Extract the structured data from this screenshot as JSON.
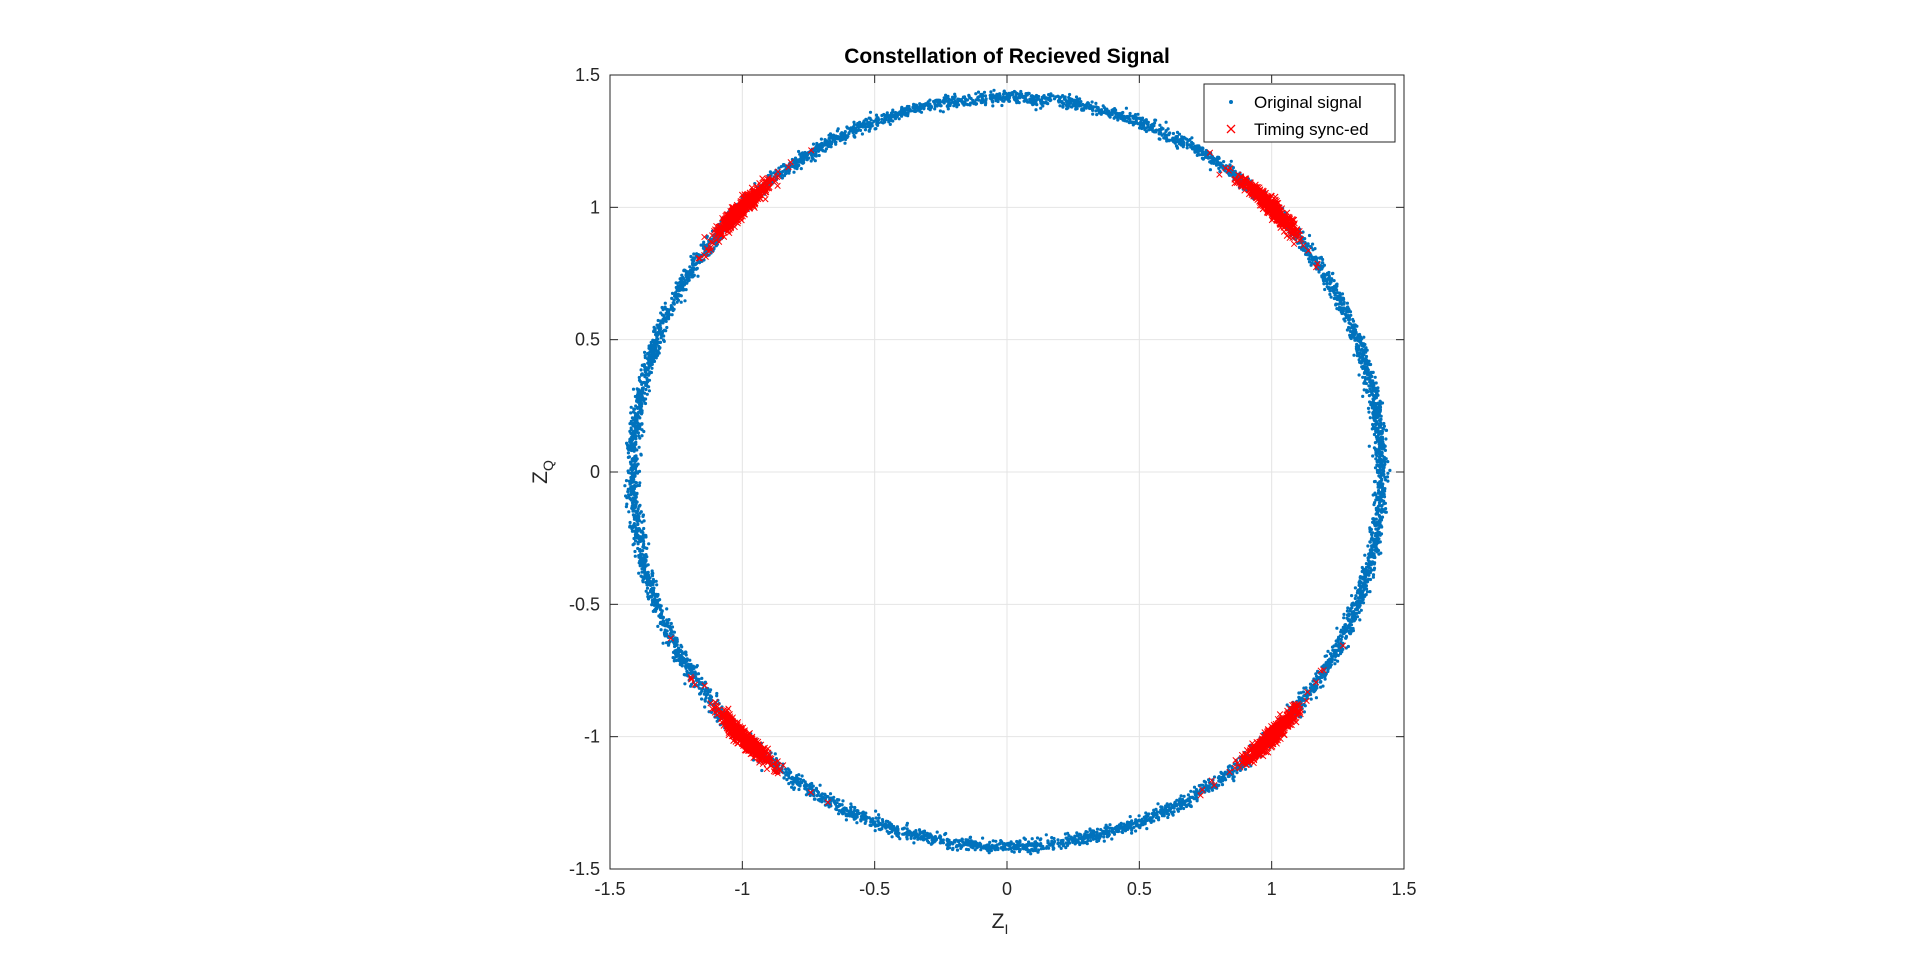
{
  "chart_data": {
    "type": "scatter",
    "title": "Constellation of Recieved Signal",
    "xlabel": {
      "main": "Z",
      "subscript": "I"
    },
    "ylabel": {
      "main": "Z",
      "subscript": "Q"
    },
    "xlim": [
      -1.5,
      1.5
    ],
    "ylim": [
      -1.5,
      1.5
    ],
    "xticks": [
      -1.5,
      -1,
      -0.5,
      0,
      0.5,
      1,
      1.5
    ],
    "yticks": [
      -1.5,
      -1,
      -0.5,
      0,
      0.5,
      1,
      1.5
    ],
    "xtick_labels": [
      "-1.5",
      "-1",
      "-0.5",
      "0",
      "0.5",
      "1",
      "1.5"
    ],
    "ytick_labels": [
      "-1.5",
      "-1",
      "-0.5",
      "0",
      "0.5",
      "1",
      "1.5"
    ],
    "grid": true,
    "legend_position": "top-right",
    "series": [
      {
        "name": "Original signal",
        "marker": "dot",
        "color": "#0072BD",
        "shape": "ring",
        "center": [
          0,
          0
        ],
        "radius": 1.414
      },
      {
        "name": "Timing sync-ed",
        "marker": "x",
        "color": "#FF0000",
        "shape": "clusters",
        "centers": [
          [
            -1,
            1
          ],
          [
            1,
            1
          ],
          [
            -1,
            -1
          ],
          [
            1,
            -1
          ]
        ],
        "radius": 1.414
      }
    ]
  }
}
